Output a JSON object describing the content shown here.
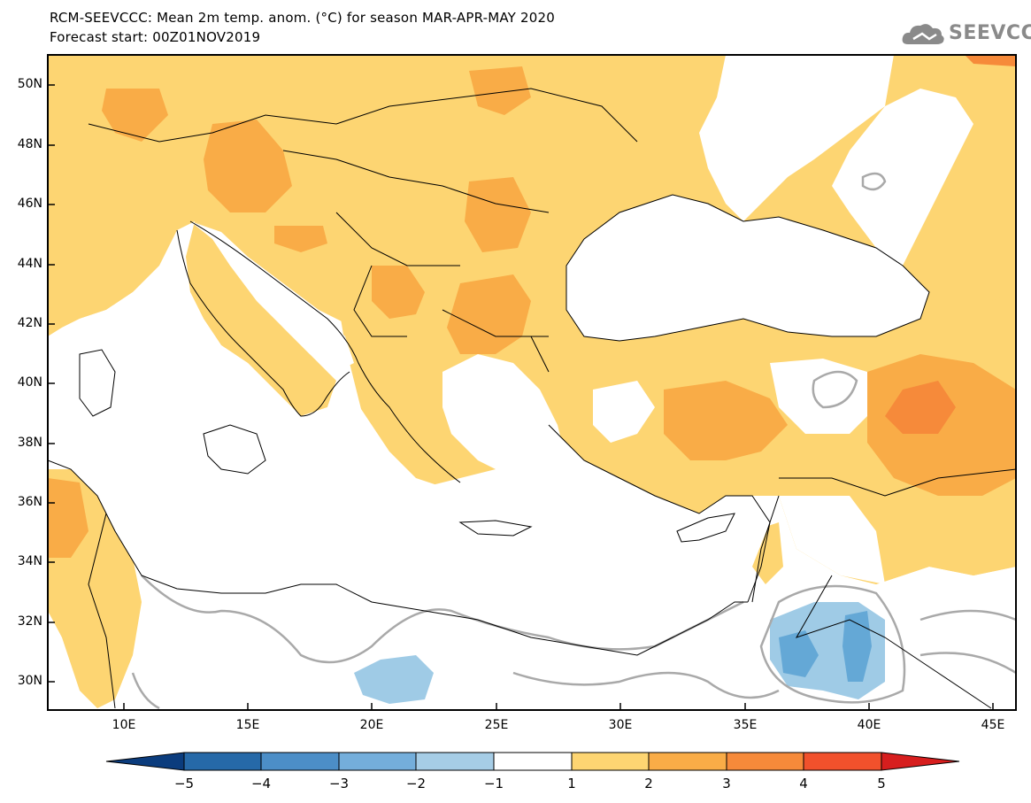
{
  "header": {
    "title": "RCM-SEEVCCC: Mean 2m temp. anom. (°C) for season MAR-APR-MAY 2020",
    "subtitle": "Forecast start: 00Z01NOV2019",
    "logo_text": "SEEVCCC"
  },
  "map": {
    "lat_ticks": [
      "50N",
      "48N",
      "46N",
      "44N",
      "42N",
      "40N",
      "38N",
      "36N",
      "34N",
      "32N",
      "30N"
    ],
    "lon_ticks": [
      "10E",
      "15E",
      "20E",
      "25E",
      "30E",
      "35E",
      "40E",
      "45E"
    ],
    "contour_label": "0",
    "colors": {
      "land_anomaly_1_2": "#fdd572",
      "land_anomaly_2_3": "#f9ac47",
      "land_anomaly_3_4": "#f68a3a",
      "neg_1_2": "#9fcbe6",
      "neg_2_3": "#64a8d6",
      "contour_gray": "#a9a9a9"
    }
  },
  "colorbar": {
    "labels": [
      "−5",
      "−4",
      "−3",
      "−2",
      "−1",
      "1",
      "2",
      "3",
      "4",
      "5"
    ],
    "colors": [
      "#0b3c7d",
      "#2669a8",
      "#4c8ec7",
      "#74aedb",
      "#a6cde6",
      "#ffffff",
      "#fdd572",
      "#f9ac47",
      "#f68a3a",
      "#f1512c",
      "#d71e1e"
    ]
  }
}
